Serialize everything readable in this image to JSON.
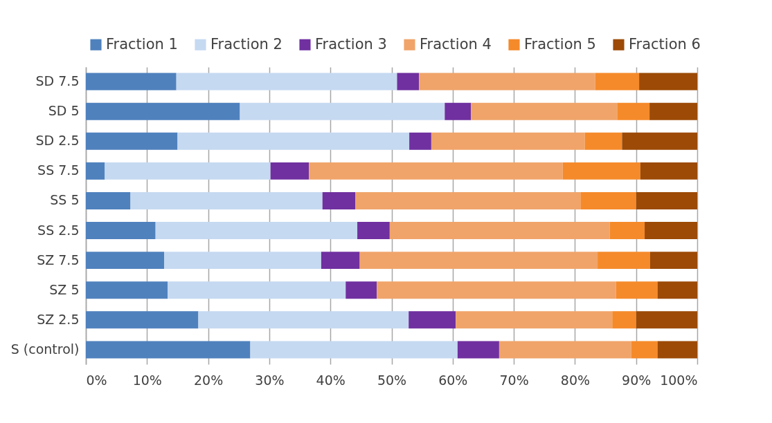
{
  "chart_data": {
    "type": "bar",
    "orientation": "horizontal",
    "stacked": true,
    "legend": "top",
    "grid": "x",
    "categories": [
      "SD 7.5",
      "SD 5",
      "SD 2.5",
      "SS 7.5",
      "SS 5",
      "SS 2.5",
      "SZ 7.5",
      "SZ 5",
      "SZ 2.5",
      "S (control)"
    ],
    "xlim": [
      0,
      100
    ],
    "xticks": [
      {
        "value": 0,
        "label": "0%"
      },
      {
        "value": 10,
        "label": "10%"
      },
      {
        "value": 20,
        "label": "20%"
      },
      {
        "value": 30,
        "label": "30%"
      },
      {
        "value": 40,
        "label": "40%"
      },
      {
        "value": 50,
        "label": "50%"
      },
      {
        "value": 60,
        "label": "60%"
      },
      {
        "value": 70,
        "label": "70%"
      },
      {
        "value": 80,
        "label": "80%"
      },
      {
        "value": 90,
        "label": "90%"
      },
      {
        "value": 100,
        "label": "100%"
      }
    ],
    "series": [
      {
        "name": "Fraction 1",
        "color": "#4f81bd",
        "values": [
          14.8,
          25.2,
          15.0,
          3.1,
          7.3,
          11.4,
          12.8,
          13.4,
          18.4,
          26.9
        ]
      },
      {
        "name": "Fraction 2",
        "color": "#c5d9f1",
        "values": [
          36.1,
          33.5,
          37.9,
          27.1,
          31.4,
          33.0,
          25.7,
          29.1,
          34.4,
          33.9
        ]
      },
      {
        "name": "Fraction 3",
        "color": "#7030a0",
        "values": [
          3.6,
          4.3,
          3.6,
          6.3,
          5.4,
          5.3,
          6.3,
          5.1,
          7.7,
          6.8
        ]
      },
      {
        "name": "Fraction 4",
        "color": "#f0a46a",
        "values": [
          28.8,
          23.9,
          25.1,
          41.5,
          36.8,
          36.0,
          38.9,
          39.1,
          25.6,
          21.6
        ]
      },
      {
        "name": "Fraction 5",
        "color": "#f58a2b",
        "values": [
          7.2,
          5.3,
          6.1,
          12.7,
          9.1,
          5.7,
          8.6,
          6.8,
          3.9,
          4.3
        ]
      },
      {
        "name": "Fraction 6",
        "color": "#9c4a06",
        "values": [
          9.5,
          7.8,
          12.3,
          9.3,
          10.0,
          8.6,
          7.7,
          6.5,
          10.0,
          6.5
        ]
      }
    ]
  }
}
